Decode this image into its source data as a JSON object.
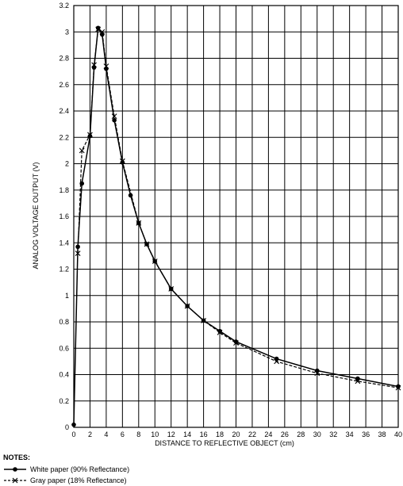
{
  "chart_data": {
    "type": "line",
    "xlabel": "DISTANCE TO REFLECTIVE OBJECT (cm)",
    "ylabel": "ANALOG VOLTAGE OUTPUT (V)",
    "xlim": [
      0,
      40
    ],
    "ylim": [
      0,
      3.2
    ],
    "x_ticks": [
      "0",
      "2",
      "4",
      "6",
      "8",
      "10",
      "12",
      "14",
      "16",
      "18",
      "20",
      "22",
      "24",
      "26",
      "28",
      "30",
      "32",
      "34",
      "36",
      "38",
      "40"
    ],
    "y_ticks": [
      "0",
      "0.2",
      "0.4",
      "0.6",
      "0.8",
      "1",
      "1.2",
      "1.4",
      "1.6",
      "1.8",
      "2",
      "2.2",
      "2.4",
      "2.6",
      "2.8",
      "3",
      "3.2"
    ],
    "grid": true,
    "series": [
      {
        "name": "White paper (90% Reflectance)",
        "marker": "dot",
        "line": "solid",
        "x": [
          0,
          0.5,
          1,
          2,
          2.5,
          3,
          3.5,
          4,
          5,
          6,
          7,
          8,
          9,
          10,
          12,
          14,
          16,
          18,
          20,
          25,
          30,
          35,
          40
        ],
        "y": [
          0.02,
          1.37,
          1.85,
          2.21,
          2.73,
          3.03,
          2.98,
          2.72,
          2.33,
          2.01,
          1.76,
          1.55,
          1.39,
          1.26,
          1.05,
          0.92,
          0.81,
          0.73,
          0.65,
          0.52,
          0.43,
          0.37,
          0.31
        ]
      },
      {
        "name": "Gray paper (18% Reflectance)",
        "marker": "x",
        "line": "dashed",
        "x": [
          0.5,
          1,
          2,
          2.5,
          3,
          3.5,
          4,
          5,
          6,
          8,
          9,
          10,
          12,
          14,
          16,
          18,
          20,
          25,
          30,
          35,
          40
        ],
        "y": [
          1.32,
          2.1,
          2.22,
          2.75,
          3.02,
          3.0,
          2.74,
          2.36,
          2.02,
          1.55,
          1.39,
          1.26,
          1.05,
          0.92,
          0.81,
          0.72,
          0.64,
          0.5,
          0.41,
          0.35,
          0.3
        ]
      }
    ]
  },
  "notes": {
    "heading": "NOTES:",
    "white_label": "White paper (90% Reflectance)",
    "gray_label": "Gray paper (18% Reflectance)"
  }
}
